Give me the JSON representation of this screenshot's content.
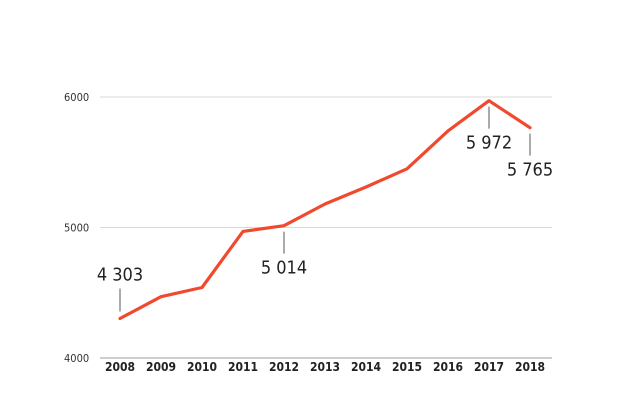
{
  "colors": {
    "line": "#f04a2e",
    "grid": "#d9d9d9"
  },
  "chart_data": {
    "type": "line",
    "title": "",
    "xlabel": "",
    "ylabel": "",
    "x": [
      "2008",
      "2009",
      "2010",
      "2011",
      "2012",
      "2013",
      "2014",
      "2015",
      "2016",
      "2017",
      "2018"
    ],
    "series": [
      {
        "values": [
          4303,
          4470,
          4540,
          4970,
          5014,
          5180,
          5310,
          5450,
          5740,
          5972,
          5765
        ]
      }
    ],
    "ylim": [
      4000,
      6000
    ],
    "yticks": [
      "4000",
      "5000",
      "6000"
    ],
    "grid": true,
    "annotations": [
      {
        "index": 0,
        "text": "4 303",
        "position": "above"
      },
      {
        "index": 4,
        "text": "5 014",
        "position": "below"
      },
      {
        "index": 9,
        "text": "5 972",
        "position": "below"
      },
      {
        "index": 10,
        "text": "5 765",
        "position": "below"
      }
    ]
  }
}
